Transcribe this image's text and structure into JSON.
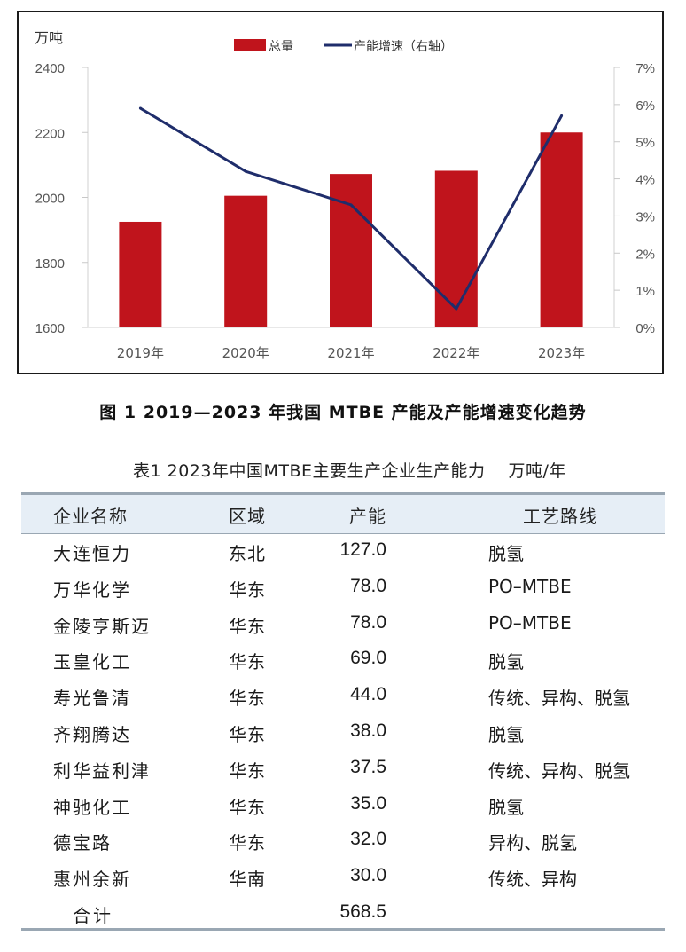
{
  "chart_data": {
    "type": "bar",
    "title": "",
    "y_left_unit": "万吨",
    "categories": [
      "2019年",
      "2020年",
      "2021年",
      "2022年",
      "2023年"
    ],
    "series": [
      {
        "name": "总量",
        "type": "bar",
        "axis": "left",
        "values": [
          1925,
          2005,
          2072,
          2082,
          2200
        ],
        "color": "#c0141c"
      },
      {
        "name": "产能增速（右轴）",
        "type": "line",
        "axis": "right",
        "values": [
          5.9,
          4.2,
          3.3,
          0.5,
          5.7
        ],
        "color": "#1f2d6b"
      }
    ],
    "y_left": {
      "min": 1600,
      "max": 2400,
      "ticks": [
        "1600",
        "1800",
        "2000",
        "2200",
        "2400"
      ]
    },
    "y_right": {
      "min": 0,
      "max": 7,
      "ticks": [
        "0%",
        "1%",
        "2%",
        "3%",
        "4%",
        "5%",
        "6%",
        "7%"
      ]
    },
    "legend_position": "top-center",
    "grid": false
  },
  "figure_caption": "图 1  2019—2023 年我国 MTBE 产能及产能增速变化趋势",
  "table": {
    "title": "表1  2023年中国MTBE主要生产企业生产能力",
    "unit": "万吨/年",
    "headers": [
      "企业名称",
      "区域",
      "产能",
      "工艺路线"
    ],
    "rows": [
      [
        "大连恒力",
        "东北",
        "127.0",
        "脱氢"
      ],
      [
        "万华化学",
        "华东",
        "78.0",
        "PO–MTBE"
      ],
      [
        "金陵亨斯迈",
        "华东",
        "78.0",
        "PO–MTBE"
      ],
      [
        "玉皇化工",
        "华东",
        "69.0",
        "脱氢"
      ],
      [
        "寿光鲁清",
        "华东",
        "44.0",
        "传统、异构、脱氢"
      ],
      [
        "齐翔腾达",
        "华东",
        "38.0",
        "脱氢"
      ],
      [
        "利华益利津",
        "华东",
        "37.5",
        "传统、异构、脱氢"
      ],
      [
        "神驰化工",
        "华东",
        "35.0",
        "脱氢"
      ],
      [
        "德宝路",
        "华东",
        "32.0",
        "异构、脱氢"
      ],
      [
        "惠州余新",
        "华南",
        "30.0",
        "传统、异构"
      ]
    ],
    "total": {
      "label": "合计",
      "value": "568.5"
    }
  }
}
